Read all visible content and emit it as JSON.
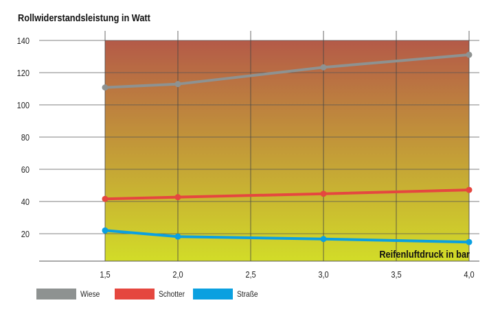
{
  "chart_data": {
    "type": "line",
    "title": "Rollwiderstandsleistung in Watt",
    "xlabel": "Reifenluftdruck in bar",
    "ylabel": "",
    "x": [
      1.5,
      2.0,
      3.0,
      4.0
    ],
    "xticks": [
      "1,5",
      "2,0",
      "2,5",
      "3,0",
      "3,5",
      "4,0"
    ],
    "xtick_values": [
      1.5,
      2.0,
      2.5,
      3.0,
      3.5,
      4.0
    ],
    "yticks": [
      20,
      40,
      60,
      80,
      100,
      120,
      140
    ],
    "xlim": [
      1.05,
      4.0
    ],
    "ylim": [
      3,
      140
    ],
    "grid": true,
    "legend": "bottom-left",
    "background_gradient": [
      "#b45a48",
      "#d2dc28"
    ],
    "series": [
      {
        "name": "Wiese",
        "color": "#8e9291",
        "values": [
          110.8,
          112.9,
          123.3,
          131.1
        ]
      },
      {
        "name": "Schotter",
        "color": "#e5473f",
        "values": [
          41.6,
          42.7,
          44.8,
          47.2
        ]
      },
      {
        "name": "Straße",
        "color": "#0ba0e0",
        "values": [
          22.0,
          18.2,
          16.7,
          14.8
        ]
      }
    ]
  }
}
